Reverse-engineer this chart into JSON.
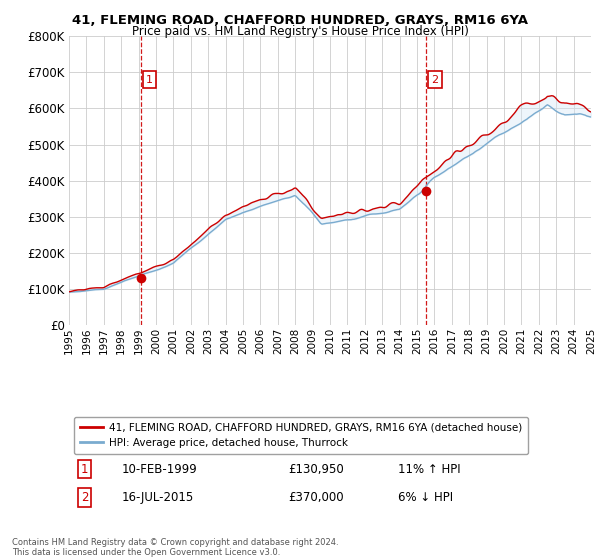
{
  "title1": "41, FLEMING ROAD, CHAFFORD HUNDRED, GRAYS, RM16 6YA",
  "title2": "Price paid vs. HM Land Registry's House Price Index (HPI)",
  "ylim": [
    0,
    800000
  ],
  "yticks": [
    0,
    100000,
    200000,
    300000,
    400000,
    500000,
    600000,
    700000,
    800000
  ],
  "ytick_labels": [
    "£0",
    "£100K",
    "£200K",
    "£300K",
    "£400K",
    "£500K",
    "£600K",
    "£700K",
    "£800K"
  ],
  "xlim_start": 1995,
  "xlim_end": 2025,
  "sale1_year": 1999.12,
  "sale1_price": 130950,
  "sale2_year": 2015.54,
  "sale2_price": 370000,
  "sale1_date": "10-FEB-1999",
  "sale1_hpi_str": "£130,950",
  "sale1_pct": "11% ↑ HPI",
  "sale2_date": "16-JUL-2015",
  "sale2_hpi_str": "£370,000",
  "sale2_pct": "6% ↓ HPI",
  "legend_red": "41, FLEMING ROAD, CHAFFORD HUNDRED, GRAYS, RM16 6YA (detached house)",
  "legend_blue": "HPI: Average price, detached house, Thurrock",
  "footnote": "Contains HM Land Registry data © Crown copyright and database right 2024.\nThis data is licensed under the Open Government Licence v3.0.",
  "red_color": "#cc0000",
  "blue_color": "#7aabcf",
  "fill_color": "#d6e8f5",
  "dashed_color": "#cc0000",
  "bg_color": "#ffffff",
  "grid_color": "#cccccc"
}
